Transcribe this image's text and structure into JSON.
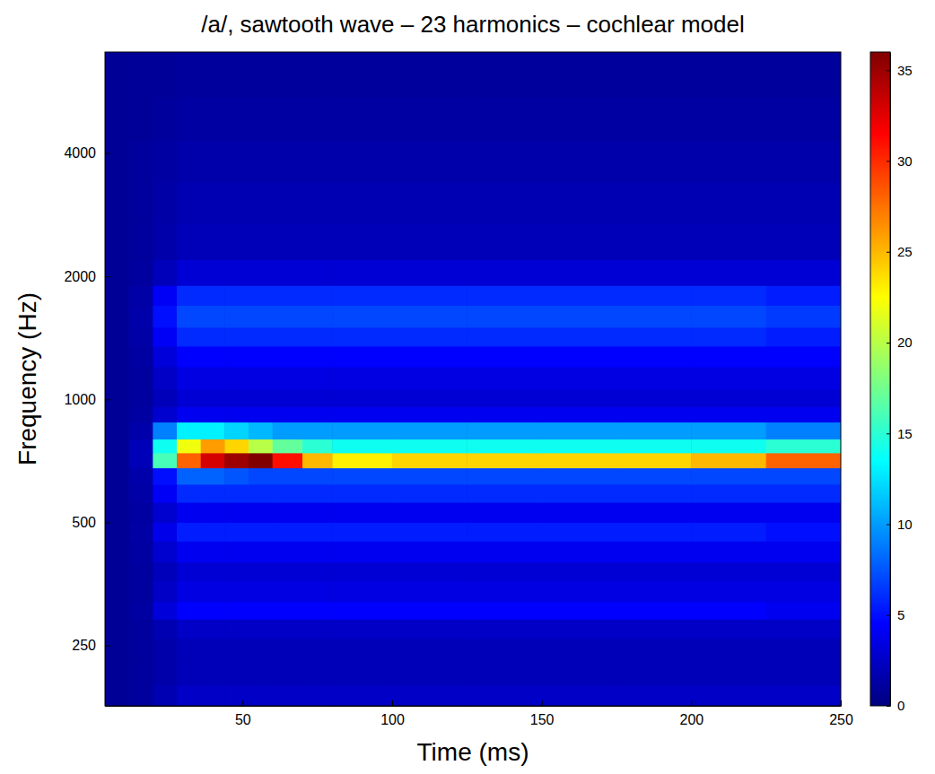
{
  "chart_data": {
    "type": "heatmap",
    "title": "/a/, sawtooth wave – 23 harmonics – cochlear model",
    "x_label": "Time (ms)",
    "y_label": "Frequency (Hz)",
    "xlim": [
      4,
      250
    ],
    "xticks": [
      50,
      100,
      150,
      200,
      250
    ],
    "ylim": [
      178,
      7070
    ],
    "yticks": [
      250,
      500,
      1000,
      2000,
      4000
    ],
    "log": "y",
    "xbins": [
      4,
      12,
      20,
      28,
      36,
      44,
      52,
      60,
      70,
      80,
      100,
      125,
      150,
      175,
      200,
      225,
      250
    ],
    "ybins": [
      178,
      200,
      230,
      260,
      290,
      320,
      360,
      400,
      450,
      500,
      560,
      620,
      680,
      740,
      800,
      880,
      960,
      1060,
      1200,
      1350,
      1500,
      1700,
      1900,
      2200,
      2700,
      3400,
      4300,
      5500,
      7070
    ],
    "z": [
      [
        0.8,
        1.0,
        1.8,
        2.5,
        2.5,
        2.5,
        2.5,
        2.5,
        2.5,
        2.5,
        2.5,
        2.5,
        2.5,
        2.5,
        2.5,
        2.5
      ],
      [
        0.8,
        1.0,
        1.5,
        2,
        2,
        2,
        2,
        2,
        2,
        2,
        2,
        2,
        2,
        2,
        2,
        2
      ],
      [
        0.8,
        1.0,
        1.5,
        2,
        2,
        2,
        2,
        2,
        2,
        2,
        2,
        2,
        2,
        2,
        2,
        2
      ],
      [
        0.8,
        1.0,
        1.8,
        2.5,
        2.5,
        2.5,
        2.5,
        2.5,
        2.5,
        2.5,
        2.5,
        2.5,
        2.5,
        2.5,
        2.5,
        2.5
      ],
      [
        0.8,
        1.2,
        3.2,
        4.5,
        4.5,
        4.5,
        4.5,
        4.5,
        4.5,
        4.5,
        4.5,
        4.5,
        4.5,
        4.5,
        4.5,
        4
      ],
      [
        0.8,
        1.1,
        2.5,
        3.5,
        3.5,
        3.5,
        3.5,
        3.5,
        3.5,
        3.5,
        3.5,
        3.5,
        3.5,
        3.5,
        3.5,
        3.5
      ],
      [
        0.8,
        1.1,
        2.1,
        3,
        3,
        3,
        3,
        3,
        3,
        3,
        3,
        3,
        3,
        3,
        3,
        3
      ],
      [
        0.8,
        1.2,
        2.8,
        4,
        4,
        4,
        4,
        4,
        4,
        4,
        4,
        4,
        4,
        4,
        4,
        4
      ],
      [
        0.8,
        1.3,
        3.8,
        5.5,
        5.5,
        5.5,
        5.5,
        5.5,
        5.5,
        5.5,
        5.5,
        5.5,
        5.5,
        5.5,
        5.5,
        5
      ],
      [
        0.8,
        1.2,
        2.8,
        4,
        4,
        4,
        4,
        4,
        4,
        4,
        4,
        4,
        4,
        4,
        4,
        4
      ],
      [
        0.8,
        1.4,
        4.2,
        6,
        6,
        6,
        6,
        6,
        6,
        6,
        6,
        6,
        6,
        6,
        6,
        6
      ],
      [
        0.8,
        1.5,
        5,
        8,
        8,
        7.5,
        7,
        7,
        7,
        7,
        7,
        7,
        7,
        7,
        7,
        7
      ],
      [
        0.8,
        2,
        16,
        28,
        33,
        35,
        36,
        31,
        25,
        23,
        24,
        24,
        24,
        24,
        25,
        28
      ],
      [
        0.8,
        2,
        14,
        22,
        26,
        24,
        20,
        17,
        15,
        14,
        14,
        14,
        14,
        14,
        14,
        15
      ],
      [
        0.8,
        1.5,
        9,
        13,
        13,
        12,
        11,
        10,
        10,
        10,
        10,
        10,
        10,
        10,
        10,
        9
      ],
      [
        0.8,
        1.2,
        2.8,
        4,
        4,
        4,
        4,
        4,
        4,
        4,
        4,
        4,
        4,
        4,
        4,
        4
      ],
      [
        0.8,
        1.1,
        2.1,
        3,
        3,
        3,
        3,
        3,
        3,
        3,
        3,
        3,
        3,
        3,
        3,
        3
      ],
      [
        0.8,
        1.1,
        2.5,
        3.5,
        3.5,
        3.5,
        3.5,
        3.5,
        3.5,
        3.5,
        3.5,
        3.5,
        3.5,
        3.5,
        3.5,
        3.5
      ],
      [
        0.8,
        1.2,
        3.2,
        4.5,
        4.5,
        4.5,
        4.5,
        4.5,
        4.5,
        4.5,
        4.5,
        4.5,
        4.5,
        4.5,
        4.5,
        4.5
      ],
      [
        0.8,
        1.4,
        4.2,
        6,
        6,
        6,
        6,
        6,
        6,
        6,
        6,
        6,
        6,
        6,
        6,
        5.5
      ],
      [
        0.8,
        1.5,
        5,
        7,
        7,
        7,
        7,
        7,
        7,
        7,
        7,
        7,
        7,
        7,
        7,
        6.5
      ],
      [
        0.8,
        1.4,
        4.2,
        6,
        6,
        6,
        6,
        6,
        6,
        6,
        6,
        6,
        6,
        6,
        6,
        5.5
      ],
      [
        0.8,
        1.1,
        2.1,
        3,
        3,
        3,
        3,
        3,
        3,
        3,
        3,
        3,
        3,
        3,
        3,
        3
      ],
      [
        0.8,
        1.0,
        1.5,
        2,
        2,
        2,
        2,
        2,
        2,
        2,
        2,
        2,
        2,
        2,
        2,
        2
      ],
      [
        0.8,
        1.0,
        1.4,
        1.8,
        1.8,
        1.8,
        1.8,
        1.8,
        1.8,
        1.8,
        1.8,
        1.8,
        1.8,
        1.8,
        1.8,
        1.8
      ],
      [
        0.8,
        1.0,
        1.2,
        1.5,
        1.5,
        1.5,
        1.5,
        1.5,
        1.5,
        1.5,
        1.5,
        1.5,
        1.5,
        1.5,
        1.5,
        1.5
      ],
      [
        0.8,
        0.9,
        1.0,
        1.2,
        1.2,
        1.2,
        1.2,
        1.2,
        1.2,
        1.2,
        1.2,
        1.2,
        1.2,
        1.2,
        1.2,
        1.2
      ],
      [
        0.8,
        0.9,
        0.9,
        1,
        1,
        1,
        1,
        1,
        1,
        1,
        1,
        1,
        1,
        1,
        1,
        1
      ]
    ],
    "zlim": [
      0,
      36
    ],
    "zticks": [
      0,
      5,
      10,
      15,
      20,
      25,
      30,
      35
    ]
  }
}
